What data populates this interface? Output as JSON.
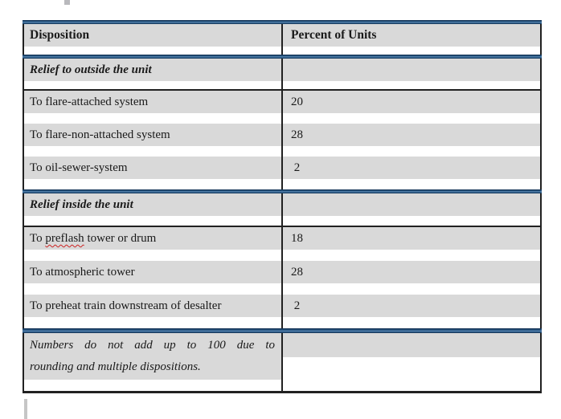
{
  "colors": {
    "accent_blue": "#1F4E79",
    "row_gray": "#D9D9D9",
    "border_black": "#212121",
    "squiggle_red": "#CC2222"
  },
  "table": {
    "headers": {
      "disposition": "Disposition",
      "percent": "Percent of Units"
    },
    "section1": {
      "title": "Relief to outside the unit",
      "rows": [
        {
          "label": "To flare-attached system",
          "value": "20"
        },
        {
          "label": "To flare-non-attached system",
          "value": "28"
        },
        {
          "label": "To oil-sewer-system",
          "value": " 2"
        }
      ]
    },
    "section2": {
      "title": "Relief inside the unit",
      "rows": [
        {
          "label_prefix": "To ",
          "misspelled_word": "preflash",
          "label_suffix": " tower or drum",
          "value": "18"
        },
        {
          "label": "To atmospheric tower",
          "value": "28"
        },
        {
          "label": "To preheat train downstream of desalter",
          "value": " 2"
        }
      ]
    },
    "note": {
      "line1": "Numbers do not add up to 100 due to",
      "line2": "rounding and multiple dispositions."
    }
  }
}
